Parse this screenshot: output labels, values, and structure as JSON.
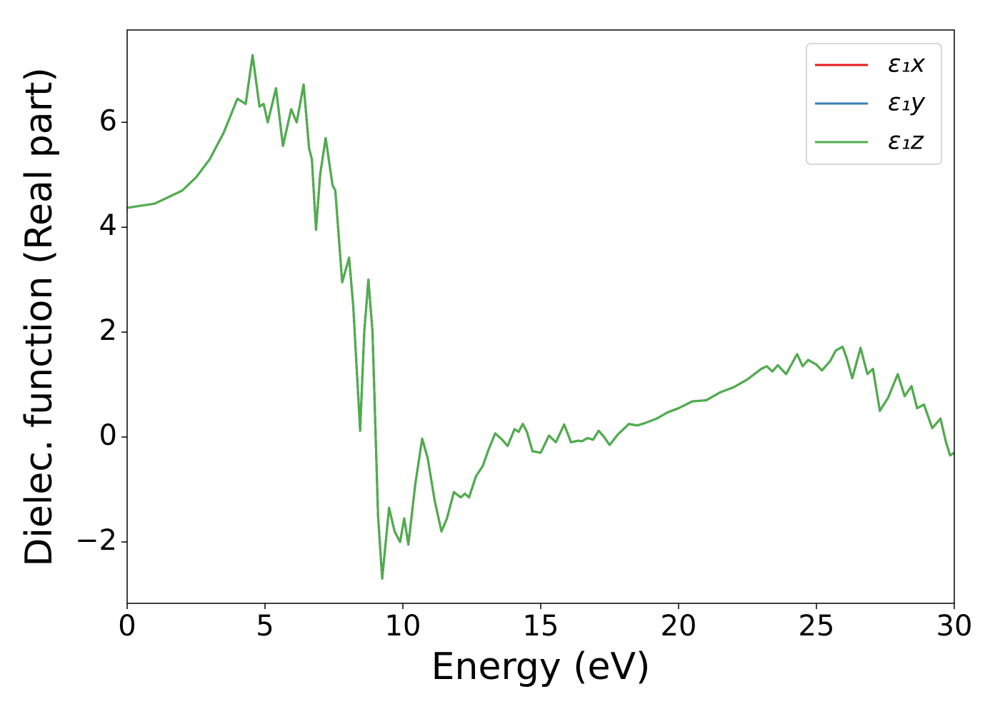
{
  "chart_data": {
    "type": "line",
    "xlabel": "Energy (eV)",
    "ylabel": "Dielec. function (Real part)",
    "x": [
      0,
      1,
      2,
      2.5,
      3,
      3.5,
      4.0,
      4.3,
      4.55,
      4.8,
      4.95,
      5.1,
      5.4,
      5.65,
      5.95,
      6.15,
      6.4,
      6.6,
      6.7,
      6.85,
      7.0,
      7.2,
      7.45,
      7.55,
      7.8,
      8.05,
      8.2,
      8.45,
      8.6,
      8.75,
      8.9,
      9.1,
      9.25,
      9.5,
      9.7,
      9.9,
      10.05,
      10.2,
      10.45,
      10.7,
      10.9,
      11.15,
      11.4,
      11.6,
      11.85,
      12.1,
      12.25,
      12.4,
      12.65,
      12.9,
      13.1,
      13.35,
      13.6,
      13.8,
      14.05,
      14.2,
      14.35,
      14.5,
      14.7,
      15.0,
      15.3,
      15.55,
      15.85,
      16.1,
      16.35,
      16.5,
      16.7,
      16.9,
      17.1,
      17.3,
      17.5,
      17.8,
      18.2,
      18.5,
      18.8,
      19.2,
      19.6,
      20.0,
      20.5,
      21.0,
      21.5,
      22.0,
      22.5,
      23.0,
      23.2,
      23.4,
      23.6,
      23.9,
      24.3,
      24.5,
      24.7,
      25.0,
      25.2,
      25.5,
      25.7,
      25.95,
      26.1,
      26.3,
      26.6,
      26.85,
      27.05,
      27.3,
      27.6,
      27.95,
      28.2,
      28.45,
      28.65,
      28.9,
      29.2,
      29.5,
      29.7,
      29.85,
      30
    ],
    "series": [
      {
        "name": "ε₁x",
        "color": "#e41a1c",
        "values": [
          4.37,
          4.45,
          4.7,
          4.95,
          5.3,
          5.8,
          6.45,
          6.35,
          7.28,
          6.3,
          6.35,
          6.0,
          6.65,
          5.55,
          6.25,
          6.0,
          6.72,
          5.5,
          5.3,
          3.95,
          5.0,
          5.7,
          4.8,
          4.7,
          2.95,
          3.42,
          2.5,
          0.12,
          2.0,
          3.0,
          2.0,
          -1.5,
          -2.7,
          -1.35,
          -1.8,
          -2.0,
          -1.55,
          -2.05,
          -0.9,
          -0.03,
          -0.4,
          -1.2,
          -1.8,
          -1.55,
          -1.05,
          -1.15,
          -1.08,
          -1.15,
          -0.75,
          -0.55,
          -0.25,
          0.07,
          -0.05,
          -0.17,
          0.15,
          0.1,
          0.25,
          0.1,
          -0.27,
          -0.3,
          0.03,
          -0.1,
          0.24,
          -0.1,
          -0.07,
          -0.08,
          -0.02,
          -0.05,
          0.12,
          0.0,
          -0.15,
          0.05,
          0.25,
          0.22,
          0.27,
          0.35,
          0.47,
          0.55,
          0.68,
          0.7,
          0.85,
          0.95,
          1.1,
          1.3,
          1.35,
          1.25,
          1.37,
          1.2,
          1.58,
          1.35,
          1.47,
          1.38,
          1.27,
          1.45,
          1.65,
          1.72,
          1.5,
          1.12,
          1.7,
          1.2,
          1.3,
          0.5,
          0.75,
          1.2,
          0.78,
          0.97,
          0.55,
          0.62,
          0.17,
          0.35,
          -0.1,
          -0.35,
          -0.3
        ]
      },
      {
        "name": "ε₁y",
        "color": "#377eb8",
        "values": [
          4.37,
          4.45,
          4.7,
          4.95,
          5.3,
          5.8,
          6.45,
          6.35,
          7.28,
          6.3,
          6.35,
          6.0,
          6.65,
          5.55,
          6.25,
          6.0,
          6.72,
          5.5,
          5.3,
          3.95,
          5.0,
          5.7,
          4.8,
          4.7,
          2.95,
          3.42,
          2.5,
          0.12,
          2.0,
          3.0,
          2.0,
          -1.5,
          -2.7,
          -1.35,
          -1.8,
          -2.0,
          -1.55,
          -2.05,
          -0.9,
          -0.03,
          -0.4,
          -1.2,
          -1.8,
          -1.55,
          -1.05,
          -1.15,
          -1.08,
          -1.15,
          -0.75,
          -0.55,
          -0.25,
          0.07,
          -0.05,
          -0.17,
          0.15,
          0.1,
          0.25,
          0.1,
          -0.27,
          -0.3,
          0.03,
          -0.1,
          0.24,
          -0.1,
          -0.07,
          -0.08,
          -0.02,
          -0.05,
          0.12,
          0.0,
          -0.15,
          0.05,
          0.25,
          0.22,
          0.27,
          0.35,
          0.47,
          0.55,
          0.68,
          0.7,
          0.85,
          0.95,
          1.1,
          1.3,
          1.35,
          1.25,
          1.37,
          1.2,
          1.58,
          1.35,
          1.47,
          1.38,
          1.27,
          1.45,
          1.65,
          1.72,
          1.5,
          1.12,
          1.7,
          1.2,
          1.3,
          0.5,
          0.75,
          1.2,
          0.78,
          0.97,
          0.55,
          0.62,
          0.17,
          0.35,
          -0.1,
          -0.35,
          -0.3
        ]
      },
      {
        "name": "ε₁z",
        "color": "#4daf4a",
        "values": [
          4.37,
          4.45,
          4.7,
          4.95,
          5.3,
          5.8,
          6.45,
          6.35,
          7.28,
          6.3,
          6.35,
          6.0,
          6.65,
          5.55,
          6.25,
          6.0,
          6.72,
          5.5,
          5.3,
          3.95,
          5.0,
          5.7,
          4.8,
          4.7,
          2.95,
          3.42,
          2.5,
          0.12,
          2.0,
          3.0,
          2.0,
          -1.5,
          -2.7,
          -1.35,
          -1.8,
          -2.0,
          -1.55,
          -2.05,
          -0.9,
          -0.03,
          -0.4,
          -1.2,
          -1.8,
          -1.55,
          -1.05,
          -1.15,
          -1.08,
          -1.15,
          -0.75,
          -0.55,
          -0.25,
          0.07,
          -0.05,
          -0.17,
          0.15,
          0.1,
          0.25,
          0.1,
          -0.27,
          -0.3,
          0.03,
          -0.1,
          0.24,
          -0.1,
          -0.07,
          -0.08,
          -0.02,
          -0.05,
          0.12,
          0.0,
          -0.15,
          0.05,
          0.25,
          0.22,
          0.27,
          0.35,
          0.47,
          0.55,
          0.68,
          0.7,
          0.85,
          0.95,
          1.1,
          1.3,
          1.35,
          1.25,
          1.37,
          1.2,
          1.58,
          1.35,
          1.47,
          1.38,
          1.27,
          1.45,
          1.65,
          1.72,
          1.5,
          1.12,
          1.7,
          1.2,
          1.3,
          0.5,
          0.75,
          1.2,
          0.78,
          0.97,
          0.55,
          0.62,
          0.17,
          0.35,
          -0.1,
          -0.35,
          -0.3
        ]
      }
    ],
    "xlim": [
      0,
      30
    ],
    "xticks": [
      0,
      5,
      10,
      15,
      20,
      25,
      30
    ],
    "ylim": [
      -3.17,
      7.76
    ],
    "yticks": [
      {
        "value": -2,
        "label": "−2"
      },
      0,
      2,
      4,
      6
    ],
    "legend": "upper right"
  }
}
